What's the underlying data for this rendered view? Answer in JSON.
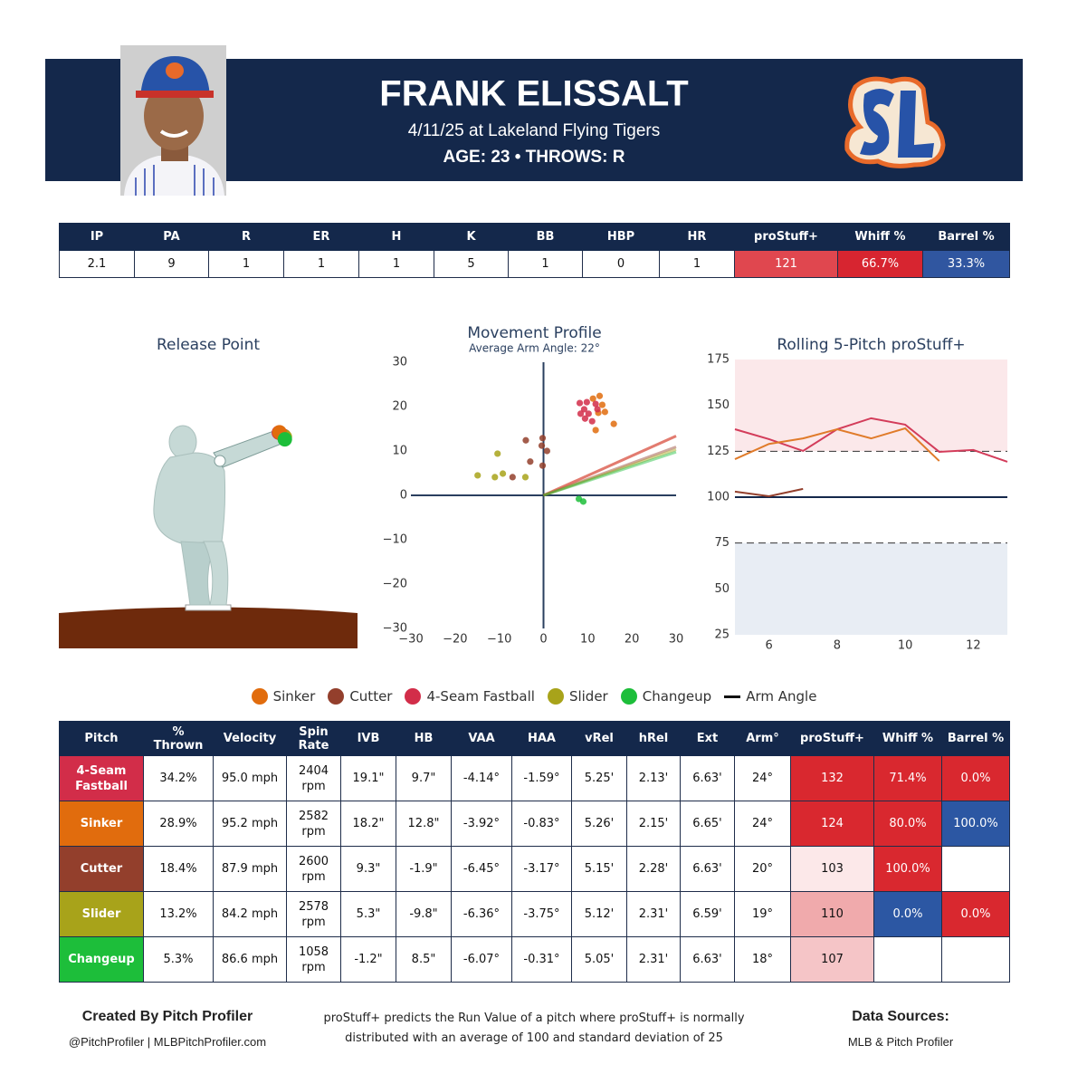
{
  "header": {
    "name": "FRANK ELISSALT",
    "game": "4/11/25 at Lakeland Flying Tigers",
    "bio": "AGE: 23 • THROWS: R"
  },
  "summary_table": {
    "columns": [
      "IP",
      "PA",
      "R",
      "ER",
      "H",
      "K",
      "BB",
      "HBP",
      "HR",
      "proStuff+",
      "Whiff %",
      "Barrel %"
    ],
    "rows": [
      [
        "2.1",
        "9",
        "1",
        "1",
        "1",
        "5",
        "1",
        "0",
        "1",
        "121",
        "66.7%",
        "33.3%"
      ]
    ],
    "cell_colors": [
      [
        null,
        null,
        null,
        null,
        null,
        null,
        null,
        null,
        null,
        "#e0474f",
        "#d72530",
        "#3056a0"
      ]
    ]
  },
  "chart_data": [
    {
      "type": "release",
      "title": "Release Point",
      "xlim": [
        -4.5,
        4.5
      ],
      "ylim": [
        0,
        8
      ],
      "series": [
        {
          "color": "#933f2c",
          "x": [
            2.28
          ],
          "values": [
            5.15
          ]
        },
        {
          "color": "#a8a31a",
          "x": [
            2.31
          ],
          "values": [
            5.12
          ]
        },
        {
          "color": "#d22d49",
          "x": [
            2.13
          ],
          "values": [
            5.25
          ]
        },
        {
          "color": "#e16c0d",
          "x": [
            2.15
          ],
          "values": [
            5.26
          ]
        },
        {
          "color": "#1dbe3a",
          "x": [
            2.31
          ],
          "values": [
            5.05
          ]
        }
      ]
    },
    {
      "type": "scatter",
      "title": "Movement Profile",
      "subtitle": "Average Arm Angle: 22°",
      "xlim": [
        -30,
        30
      ],
      "ylim": [
        -30,
        30
      ],
      "xticks": [
        {
          "value": -30,
          "label": "−30"
        },
        {
          "value": -20,
          "label": "−20"
        },
        {
          "value": -10,
          "label": "−10"
        },
        0,
        10,
        20,
        30
      ],
      "yticks": [
        {
          "value": -30,
          "label": "−30"
        },
        {
          "value": -20,
          "label": "−20"
        },
        {
          "value": -10,
          "label": "−10"
        },
        0,
        10,
        20,
        30
      ],
      "arm_angle_name": "Arm Angle",
      "series": [
        {
          "name": "Sinker",
          "color": "#e16c0d",
          "arm_angle": 24,
          "x": [
            12.7,
            13.3,
            12.4,
            13.9,
            15.9,
            11.8,
            11.2
          ],
          "values": [
            22.4,
            20.4,
            18.6,
            18.8,
            16.1,
            14.7,
            21.8
          ]
        },
        {
          "name": "Cutter",
          "color": "#933f2c",
          "arm_angle": 20,
          "x": [
            -4,
            -0.2,
            -0.4,
            0.8,
            -3,
            -0.2,
            -7
          ],
          "values": [
            12.4,
            12.9,
            11.2,
            10,
            7.6,
            6.7,
            4.1
          ]
        },
        {
          "name": "4-Seam Fastball",
          "color": "#d22d49",
          "arm_angle": 24,
          "x": [
            8.2,
            9.8,
            11.8,
            9.2,
            10.2,
            12.2,
            11,
            9.4,
            8.4
          ],
          "values": [
            20.8,
            21,
            20.6,
            19.4,
            18.4,
            19.4,
            16.7,
            17.3,
            18.4
          ]
        },
        {
          "name": "Slider",
          "color": "#a8a31a",
          "arm_angle": 19,
          "x": [
            -10.4,
            -14.9,
            -11,
            -9.2,
            -4.1
          ],
          "values": [
            9.4,
            4.5,
            4.1,
            4.9,
            4.1
          ]
        },
        {
          "name": "Changeup",
          "color": "#1dbe3a",
          "arm_angle": 18,
          "x": [
            8,
            9
          ],
          "values": [
            -0.8,
            -1.4
          ]
        }
      ]
    },
    {
      "type": "line",
      "title": "Rolling 5-Pitch proStuff+",
      "xlim": [
        5,
        13
      ],
      "ylim": [
        25,
        175
      ],
      "xticks": [
        6,
        8,
        10,
        12
      ],
      "yticks": [
        25,
        50,
        75,
        100,
        125,
        150,
        175
      ],
      "bands": [
        {
          "from": 125,
          "to": 175,
          "color": "#fbe8ea"
        },
        {
          "from": 25,
          "to": 75,
          "color": "#e8edf4"
        }
      ],
      "reference_lines": [
        {
          "value": 125,
          "dash": true
        },
        {
          "value": 100,
          "dash": false
        },
        {
          "value": 75,
          "dash": true
        }
      ],
      "series": [
        {
          "color": "#d33c5a",
          "x": [
            5,
            6,
            7,
            8,
            9,
            10,
            11,
            12,
            13
          ],
          "values": [
            137,
            131.6,
            125.2,
            137,
            143,
            139.5,
            124.7,
            125.7,
            119.3
          ]
        },
        {
          "color": "#e07b2a",
          "x": [
            5,
            6,
            7,
            8,
            9,
            10,
            11
          ],
          "values": [
            120.7,
            129,
            132,
            137,
            132,
            137.5,
            119.7
          ]
        },
        {
          "color": "#933f2c",
          "x": [
            5,
            6,
            7
          ],
          "values": [
            103,
            100.5,
            104.5
          ]
        }
      ]
    }
  ],
  "pitch_table": {
    "columns": [
      "Pitch",
      "% Thrown",
      "Velocity",
      "Spin Rate",
      "IVB",
      "HB",
      "VAA",
      "HAA",
      "vRel",
      "hRel",
      "Ext",
      "Arm°",
      "proStuff+",
      "Whiff %",
      "Barrel %"
    ],
    "rows": [
      [
        "4-Seam Fastball",
        "34.2%",
        "95.0 mph",
        "2404 rpm",
        "19.1\"",
        "9.7\"",
        "-4.14°",
        "-1.59°",
        "5.25'",
        "2.13'",
        "6.63'",
        "24°",
        "132",
        "71.4%",
        "0.0%"
      ],
      [
        "Sinker",
        "28.9%",
        "95.2 mph",
        "2582 rpm",
        "18.2\"",
        "12.8\"",
        "-3.92°",
        "-0.83°",
        "5.26'",
        "2.15'",
        "6.65'",
        "24°",
        "124",
        "80.0%",
        "100.0%"
      ],
      [
        "Cutter",
        "18.4%",
        "87.9 mph",
        "2600 rpm",
        "9.3\"",
        "-1.9\"",
        "-6.45°",
        "-3.17°",
        "5.15'",
        "2.28'",
        "6.63'",
        "20°",
        "103",
        "100.0%",
        null
      ],
      [
        "Slider",
        "13.2%",
        "84.2 mph",
        "2578 rpm",
        "5.3\"",
        "-9.8\"",
        "-6.36°",
        "-3.75°",
        "5.12'",
        "2.31'",
        "6.59'",
        "19°",
        "110",
        "0.0%",
        "0.0%"
      ],
      [
        "Changeup",
        "5.3%",
        "86.6 mph",
        "1058 rpm",
        "-1.2\"",
        "8.5\"",
        "-6.07°",
        "-0.31°",
        "5.05'",
        "2.31'",
        "6.63'",
        "18°",
        "107",
        null,
        null
      ]
    ],
    "cell_colors": [
      [
        "#d22d49",
        null,
        null,
        null,
        null,
        null,
        null,
        null,
        null,
        null,
        null,
        null,
        "#d9282f",
        "#d9282f",
        "#d9282f"
      ],
      [
        "#e16c0d",
        null,
        null,
        null,
        null,
        null,
        null,
        null,
        null,
        null,
        null,
        null,
        "#d9282f",
        "#d9282f",
        "#2c57a3"
      ],
      [
        "#933f2c",
        null,
        null,
        null,
        null,
        null,
        null,
        null,
        null,
        null,
        null,
        null,
        "#fce8e9",
        "#d9282f",
        null
      ],
      [
        "#a8a31a",
        null,
        null,
        null,
        null,
        null,
        null,
        null,
        null,
        null,
        null,
        null,
        "#f0aaac",
        "#2c57a3",
        "#d9282f"
      ],
      [
        "#1dbe3a",
        null,
        null,
        null,
        null,
        null,
        null,
        null,
        null,
        null,
        null,
        null,
        "#f5c5c7",
        null,
        null
      ]
    ]
  },
  "footer": {
    "credit": "Created By Pitch Profiler",
    "handles": "@PitchProfiler | MLBPitchProfiler.com",
    "note": "proStuff+ predicts the Run Value of a pitch where proStuff+ is normally distributed with an average of 100 and standard deviation of 25",
    "sources_title": "Data Sources:",
    "sources": "MLB & Pitch Profiler"
  }
}
